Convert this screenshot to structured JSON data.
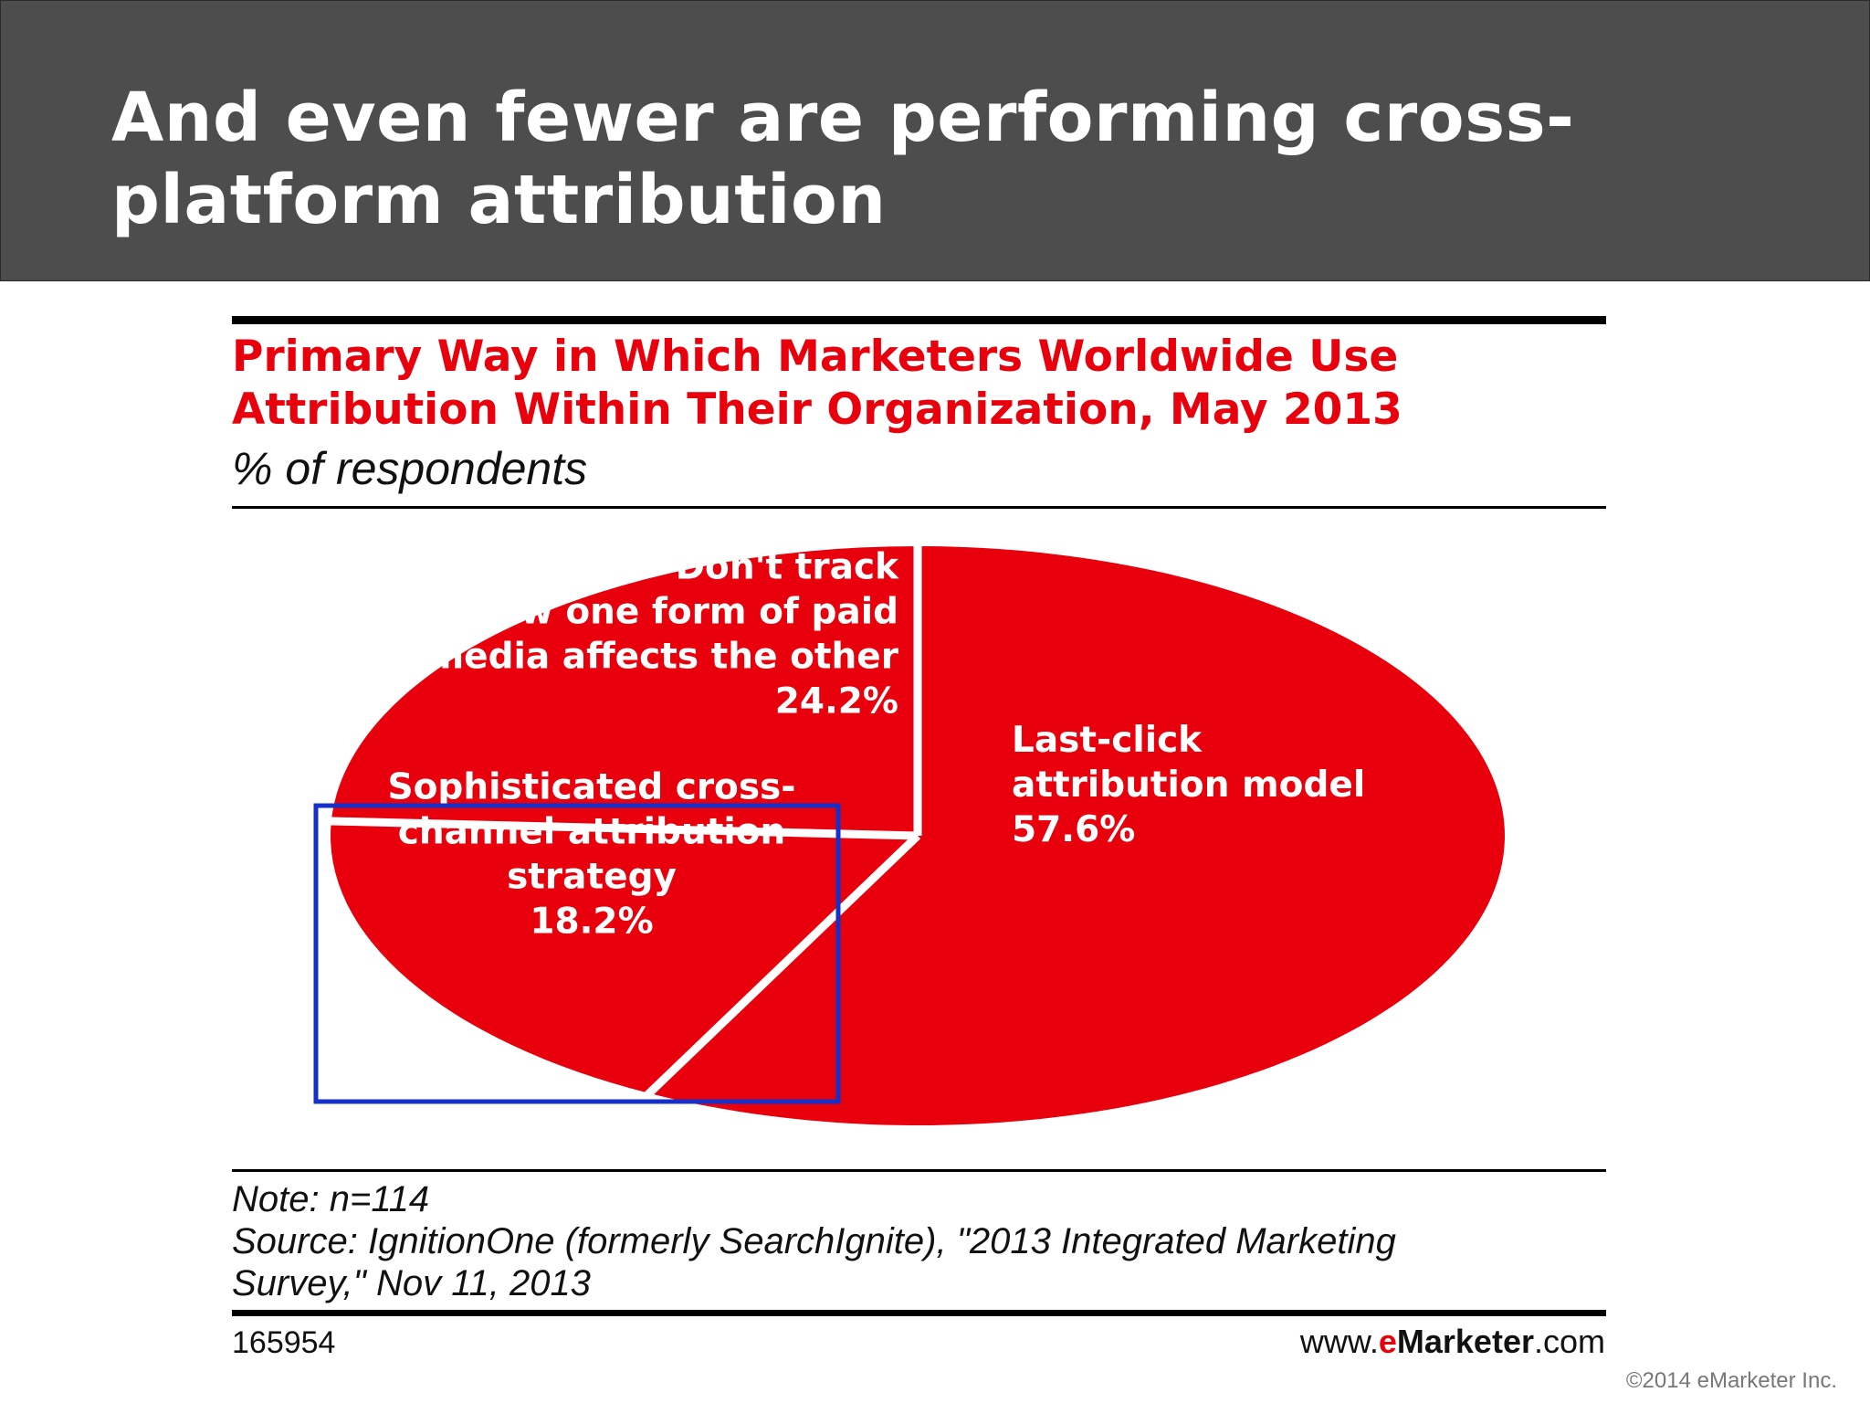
{
  "slide": {
    "title": "And even fewer are performing cross-platform attribution",
    "copyright": "©2014 eMarketer Inc."
  },
  "chart_data": {
    "type": "pie",
    "title": "Primary Way in Which Marketers Worldwide Use Attribution Within Their Organization, May 2013",
    "subtitle": "% of respondents",
    "slices": [
      {
        "label_lines": [
          "Last-click",
          "attribution model"
        ],
        "value": 57.6,
        "value_label": "57.6%",
        "color": "#e8000d"
      },
      {
        "label_lines": [
          "Sophisticated cross-",
          "channel attribution",
          "strategy"
        ],
        "value": 18.2,
        "value_label": "18.2%",
        "color": "#e8000d"
      },
      {
        "label_lines": [
          "Don't track",
          "how one form of paid",
          "media affects the other"
        ],
        "value": 24.2,
        "value_label": "24.2%",
        "color": "#e8000d"
      }
    ],
    "highlight_box_color": "#1530c8",
    "note": "Note: n=114",
    "source_line1": "Source: IgnitionOne (formerly SearchIgnite), \"2013 Integrated Marketing",
    "source_line2": "Survey,\" Nov 11, 2013",
    "chart_id": "165954"
  },
  "branding": {
    "www": "www.",
    "e": "e",
    "marketer": "Marketer",
    "com": ".com"
  }
}
